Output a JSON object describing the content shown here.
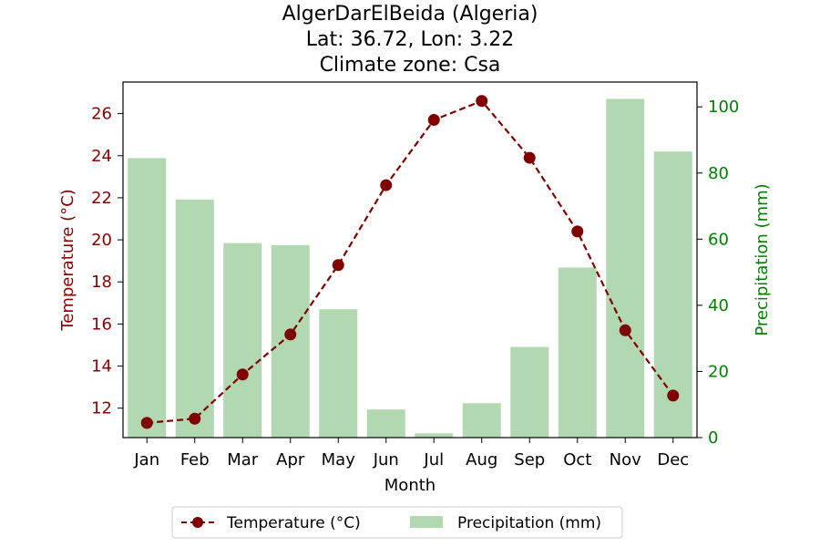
{
  "chart_data": {
    "type": "bar+line",
    "title_lines": [
      "AlgerDarElBeida (Algeria)",
      "Lat: 36.72, Lon: 3.22",
      "Climate zone: Csa"
    ],
    "xlabel": "Month",
    "ylabel_left": "Temperature (°C)",
    "ylabel_right": "Precipitation (mm)",
    "categories": [
      "Jan",
      "Feb",
      "Mar",
      "Apr",
      "May",
      "Jun",
      "Jul",
      "Aug",
      "Sep",
      "Oct",
      "Nov",
      "Dec"
    ],
    "temperature": {
      "name": "Temperature (°C)",
      "values": [
        11.3,
        11.5,
        13.6,
        15.5,
        18.8,
        22.6,
        25.7,
        26.6,
        23.9,
        20.4,
        15.7,
        12.6
      ],
      "color": "#800000",
      "ylim": [
        10.6,
        27.5
      ],
      "ticks": [
        12,
        14,
        16,
        18,
        20,
        22,
        24,
        26
      ]
    },
    "precipitation": {
      "name": "Precipitation (mm)",
      "values": [
        84.5,
        72.0,
        58.8,
        58.2,
        38.8,
        8.5,
        1.3,
        10.4,
        27.4,
        51.4,
        102.4,
        86.5
      ],
      "color": "#b2d8b2",
      "ylim": [
        0,
        107.5
      ],
      "ticks": [
        0,
        20,
        40,
        60,
        80,
        100
      ]
    },
    "left_axis_color": "#8b0000",
    "right_axis_color": "#008000",
    "legend_position": "bottom-center"
  }
}
